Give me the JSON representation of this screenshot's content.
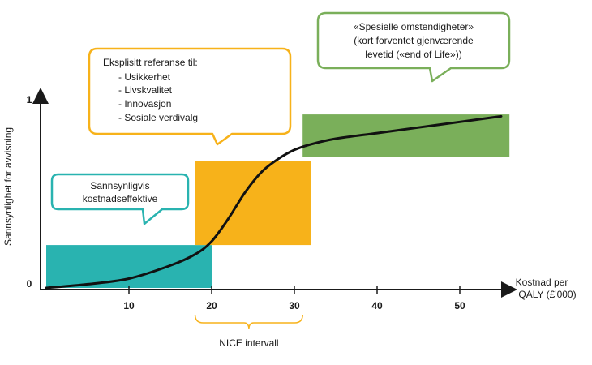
{
  "chart_data": {
    "type": "line",
    "ylabel": "Sannsynlighet for avvisning",
    "xlabel_line1": "Kostnad per",
    "xlabel_line2": "QALY (£'000)",
    "y_ticks": [
      "0",
      "1"
    ],
    "x_ticks": [
      10,
      20,
      30,
      40,
      50
    ],
    "x_range": [
      0,
      57
    ],
    "y_range": [
      0,
      1
    ],
    "curve": {
      "x": [
        0,
        5,
        10,
        15,
        18,
        20,
        22,
        24,
        26,
        28,
        30,
        32,
        35,
        40,
        45,
        50,
        55
      ],
      "y": [
        0.0,
        0.02,
        0.05,
        0.12,
        0.18,
        0.25,
        0.37,
        0.51,
        0.62,
        0.69,
        0.74,
        0.77,
        0.8,
        0.83,
        0.86,
        0.89,
        0.92
      ]
    },
    "regions": [
      {
        "name": "cost-effective",
        "color": "#29b3b0",
        "x0": 0,
        "x1": 20,
        "y0": 0.0,
        "y1": 0.23
      },
      {
        "name": "nice-interval",
        "color": "#f7b21a",
        "x0": 18,
        "x1": 32,
        "y0": 0.23,
        "y1": 0.68
      },
      {
        "name": "end-of-life",
        "color": "#7aaf5a",
        "x0": 31,
        "x1": 56,
        "y0": 0.7,
        "y1": 0.93
      }
    ],
    "interval_label": "NICE intervall",
    "interval_range": [
      18,
      31
    ]
  },
  "callouts": {
    "teal": {
      "color": "#29b3b0",
      "lines": [
        "Sannsynligvis",
        "kostnadseffektive"
      ]
    },
    "orange": {
      "color": "#f7b21a",
      "title": "Eksplisitt referanse til:",
      "items": [
        "- Usikkerhet",
        "- Livskvalitet",
        "- Innovasjon",
        "- Sosiale verdivalg"
      ]
    },
    "green": {
      "color": "#7aaf5a",
      "lines": [
        "«Spesielle omstendigheter»",
        "(kort forventet gjenværende",
        "levetid («end of Life»))"
      ]
    }
  },
  "colors": {
    "axis": "#1a1a1a",
    "curve": "#111111"
  }
}
